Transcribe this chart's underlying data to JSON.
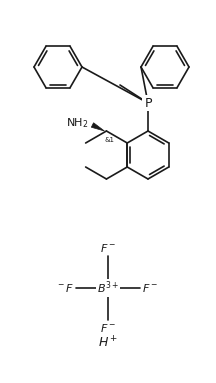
{
  "background_color": "#ffffff",
  "line_color": "#1a1a1a",
  "line_width": 1.2,
  "fig_width": 2.16,
  "fig_height": 3.83,
  "dpi": 100
}
